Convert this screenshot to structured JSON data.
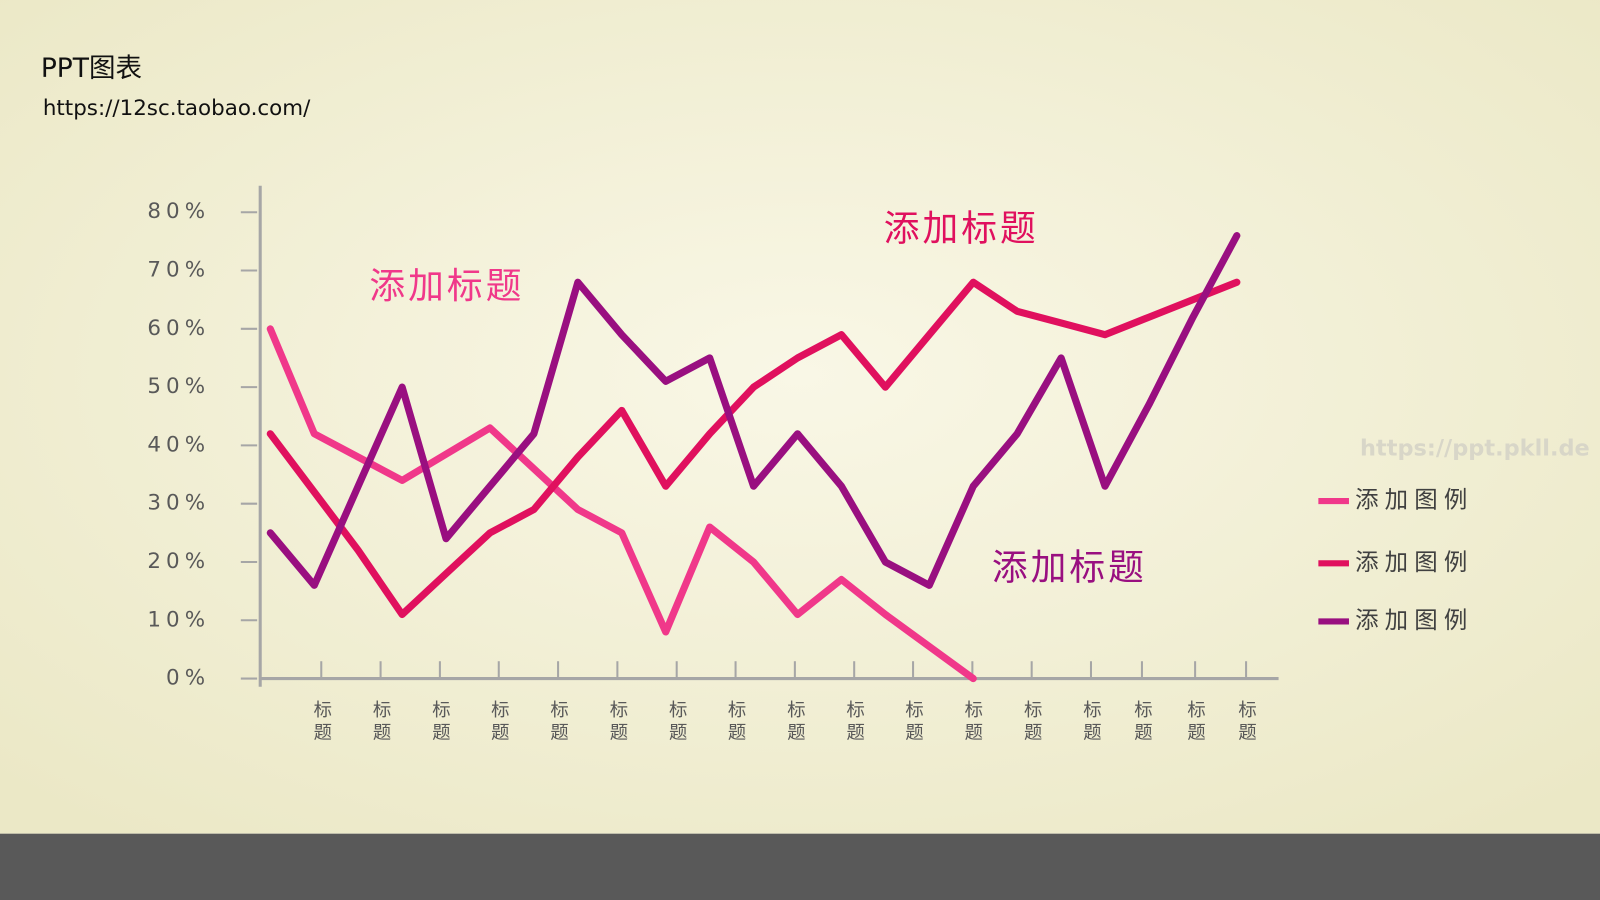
{
  "header": {
    "title": "PPT图表",
    "url": "https://12sc.taobao.com/"
  },
  "watermark": "https://ppt.pkll.de",
  "chart_data": {
    "type": "line",
    "annotations": [
      "添加标题",
      "添加标题",
      "添加标题"
    ],
    "x": [
      0,
      1,
      2,
      3,
      4,
      5,
      6,
      7,
      8,
      9,
      10,
      11,
      12,
      13,
      14,
      15,
      16,
      17,
      18,
      19,
      20,
      21,
      22
    ],
    "xlim": [
      -0.23,
      22.88
    ],
    "xticks": [
      {
        "value": 1.16,
        "label": "标题"
      },
      {
        "value": 2.51,
        "label": "标题"
      },
      {
        "value": 3.86,
        "label": "标题"
      },
      {
        "value": 5.2,
        "label": "标题"
      },
      {
        "value": 6.55,
        "label": "标题"
      },
      {
        "value": 7.9,
        "label": "标题"
      },
      {
        "value": 9.25,
        "label": "标题"
      },
      {
        "value": 10.59,
        "label": "标题"
      },
      {
        "value": 11.94,
        "label": "标题"
      },
      {
        "value": 13.29,
        "label": "标题"
      },
      {
        "value": 14.63,
        "label": "标题"
      },
      {
        "value": 15.98,
        "label": "标题"
      },
      {
        "value": 17.33,
        "label": "标题"
      },
      {
        "value": 18.68,
        "label": "标题"
      },
      {
        "value": 19.84,
        "label": "标题"
      },
      {
        "value": 21.05,
        "label": "标题"
      },
      {
        "value": 22.21,
        "label": "标题"
      }
    ],
    "ylim": [
      0,
      80
    ],
    "yticks": [
      {
        "value": 0,
        "label": "0%"
      },
      {
        "value": 10,
        "label": "10%"
      },
      {
        "value": 20,
        "label": "20%"
      },
      {
        "value": 30,
        "label": "30%"
      },
      {
        "value": 40,
        "label": "40%"
      },
      {
        "value": 50,
        "label": "50%"
      },
      {
        "value": 60,
        "label": "60%"
      },
      {
        "value": 70,
        "label": "70%"
      },
      {
        "value": 80,
        "label": "80%"
      }
    ],
    "series": [
      {
        "name": "添加图例",
        "color": "#f0388a",
        "values": [
          60,
          42,
          38,
          34,
          38.5,
          43,
          36,
          29,
          25,
          8,
          26,
          20,
          11,
          17,
          11,
          5.5,
          0,
          null,
          null,
          null,
          null,
          null,
          null
        ]
      },
      {
        "name": "添加图例",
        "color": "#e0105e",
        "values": [
          42,
          32,
          22,
          11,
          18,
          25,
          29,
          38,
          46,
          33,
          42,
          50,
          55,
          59,
          50,
          59,
          68,
          63,
          61,
          59,
          62,
          65,
          68
        ]
      },
      {
        "name": "添加图例",
        "color": "#990f80",
        "values": [
          25,
          16,
          33,
          50,
          24,
          33,
          42,
          68,
          59,
          51,
          55,
          33,
          42,
          33,
          20,
          16,
          33,
          42,
          55,
          33,
          47,
          62,
          76
        ]
      }
    ]
  }
}
